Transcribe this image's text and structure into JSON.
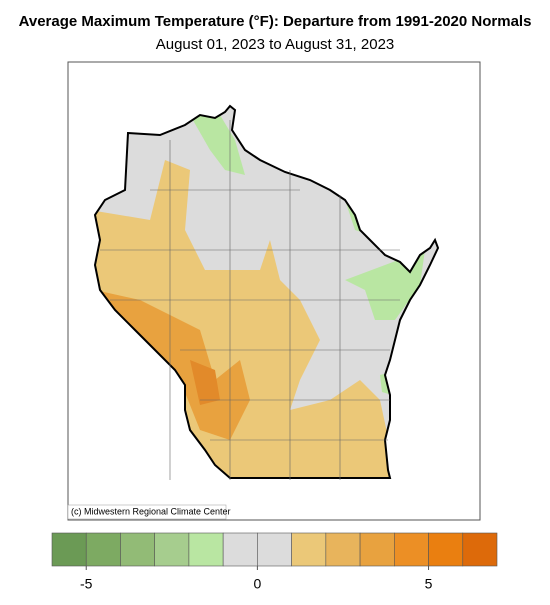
{
  "header": {
    "title": "Average Maximum Temperature (°F): Departure from 1991-2020 Normals",
    "subtitle": "August 01, 2023 to August 31, 2023"
  },
  "map": {
    "region": "Wisconsin",
    "credit": "(c) Midwestern Regional Climate Center"
  },
  "legend": {
    "colors": [
      "#6b9a55",
      "#7daa62",
      "#92bb76",
      "#a6cd8e",
      "#b9e6a2",
      "#dcdcdc",
      "#dcdcdc",
      "#ebc878",
      "#e8b45c",
      "#e8a23f",
      "#ec8f25",
      "#ea7f10",
      "#dd6a0a"
    ],
    "bins": [
      -6,
      -5,
      -4,
      -3,
      -2,
      -1,
      0,
      1,
      2,
      3,
      4,
      5,
      6,
      7
    ],
    "ticks": [
      -5,
      0,
      5
    ]
  }
}
